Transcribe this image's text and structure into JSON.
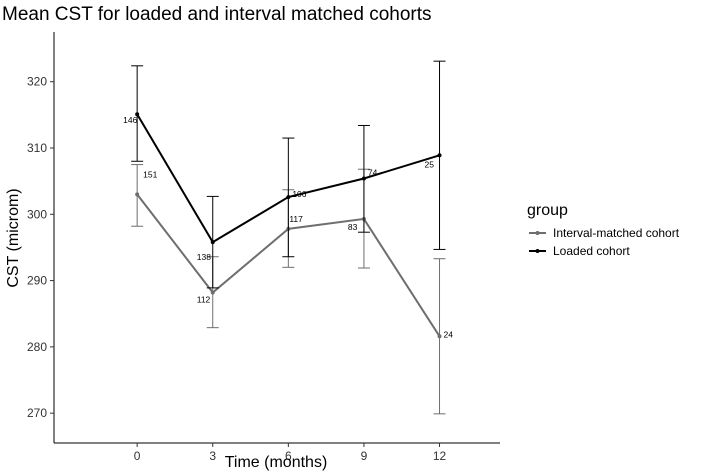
{
  "chart_data": {
    "type": "line",
    "title": "Mean CST for loaded and interval matched cohorts",
    "xlabel": "Time (months)",
    "ylabel": "CST (microm)",
    "x": [
      0,
      3,
      6,
      9,
      12
    ],
    "xlim": [
      -3.3,
      14.4
    ],
    "ylim": [
      265.5,
      327.5
    ],
    "yticks": [
      270,
      280,
      290,
      300,
      310,
      320
    ],
    "grid": false,
    "legend": {
      "title": "group",
      "position": "right"
    },
    "series": [
      {
        "name": "Interval-matched cohort",
        "color": "#6e6e6e",
        "values": [
          303.0,
          288.2,
          297.8,
          299.3,
          281.6
        ],
        "lower": [
          298.2,
          282.9,
          292.0,
          291.9,
          269.9
        ],
        "upper": [
          307.5,
          293.6,
          303.7,
          306.8,
          293.3
        ],
        "n_labels": [
          "151",
          "112",
          "117",
          "83",
          "24"
        ]
      },
      {
        "name": "Loaded cohort",
        "color": "#000000",
        "values": [
          315.1,
          295.8,
          302.6,
          305.4,
          308.9
        ],
        "lower": [
          308.0,
          288.9,
          293.6,
          297.3,
          294.7
        ],
        "upper": [
          322.4,
          302.7,
          311.5,
          313.4,
          323.1
        ],
        "n_labels": [
          "146",
          "138",
          "106",
          "74",
          "25"
        ]
      }
    ]
  }
}
